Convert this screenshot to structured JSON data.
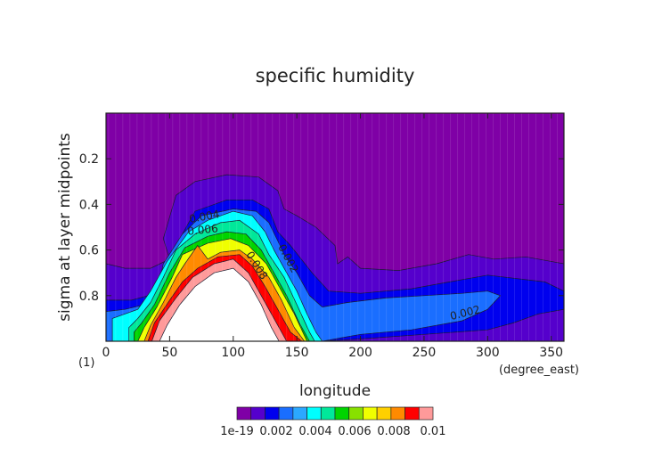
{
  "chart_data": {
    "type": "contour",
    "title": "specific humidity",
    "xlabel": "longitude",
    "ylabel": "sigma at layer midpoints",
    "x_unit": "(degree_east)",
    "y_unit": "(1)",
    "xlim": [
      0,
      360
    ],
    "ylim": [
      1.0,
      0.0
    ],
    "x_ticks": [
      "0",
      "50",
      "100",
      "150",
      "200",
      "250",
      "300",
      "350"
    ],
    "y_ticks": [
      "0.2",
      "0.4",
      "0.6",
      "0.8"
    ],
    "contour_labels": [
      "0.004",
      "0.006",
      "0.008",
      "0.002",
      "0.002"
    ],
    "colorbar": {
      "labels": [
        "1e-19",
        "0.002",
        "0.004",
        "0.006",
        "0.008",
        "0.01"
      ],
      "colors": [
        "#7f00a6",
        "#5500cc",
        "#0000ee",
        "#1a6eff",
        "#2ba8ff",
        "#00ffff",
        "#00e89a",
        "#00d400",
        "#88e000",
        "#f0ff00",
        "#ffd000",
        "#ff8a00",
        "#ff0000",
        "#ff9a9a"
      ]
    }
  }
}
